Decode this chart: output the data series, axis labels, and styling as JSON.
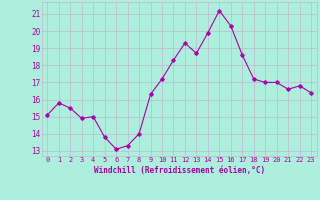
{
  "x": [
    0,
    1,
    2,
    3,
    4,
    5,
    6,
    7,
    8,
    9,
    10,
    11,
    12,
    13,
    14,
    15,
    16,
    17,
    18,
    19,
    20,
    21,
    22,
    23
  ],
  "y": [
    15.1,
    15.8,
    15.5,
    14.9,
    15.0,
    13.8,
    13.1,
    13.3,
    14.0,
    16.3,
    17.2,
    18.3,
    19.3,
    18.7,
    19.9,
    21.2,
    20.3,
    18.6,
    17.2,
    17.0,
    17.0,
    16.6,
    16.8,
    16.4
  ],
  "line_color": "#aa00aa",
  "marker": "D",
  "marker_size": 1.8,
  "bg_color": "#aeeedd",
  "grid_color": "#c0b8cc",
  "xlabel": "Windchill (Refroidissement éolien,°C)",
  "xlabel_color": "#aa00aa",
  "tick_color": "#aa00aa",
  "ylim": [
    12.7,
    21.7
  ],
  "yticks": [
    13,
    14,
    15,
    16,
    17,
    18,
    19,
    20,
    21
  ],
  "xlim": [
    -0.5,
    23.5
  ],
  "xticks": [
    0,
    1,
    2,
    3,
    4,
    5,
    6,
    7,
    8,
    9,
    10,
    11,
    12,
    13,
    14,
    15,
    16,
    17,
    18,
    19,
    20,
    21,
    22,
    23
  ]
}
